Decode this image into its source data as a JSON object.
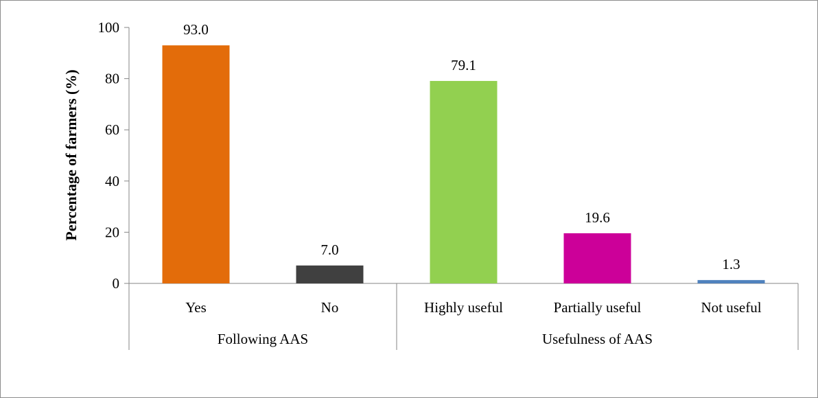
{
  "chart_data": {
    "type": "bar",
    "title": "",
    "xlabel": "",
    "ylabel": "Percentage of farmers (%)",
    "ylim": [
      0,
      100
    ],
    "yticks": [
      0,
      20,
      40,
      60,
      80,
      100
    ],
    "grid": false,
    "legend": "none",
    "categories": [
      "Yes",
      "No",
      "Highly useful",
      "Partially useful",
      "Not useful"
    ],
    "values": [
      93.0,
      7.0,
      79.1,
      19.6,
      1.3
    ],
    "data_labels": [
      "93.0",
      "7.0",
      "79.1",
      "19.6",
      "1.3"
    ],
    "colors": [
      "#E36C0A",
      "#404040",
      "#92D050",
      "#CC0099",
      "#4F81BD"
    ],
    "groups": [
      {
        "label": "Following AAS",
        "categories": [
          "Yes",
          "No"
        ]
      },
      {
        "label": "Usefulness of AAS",
        "categories": [
          "Highly useful",
          "Partially useful",
          "Not useful"
        ]
      }
    ]
  }
}
